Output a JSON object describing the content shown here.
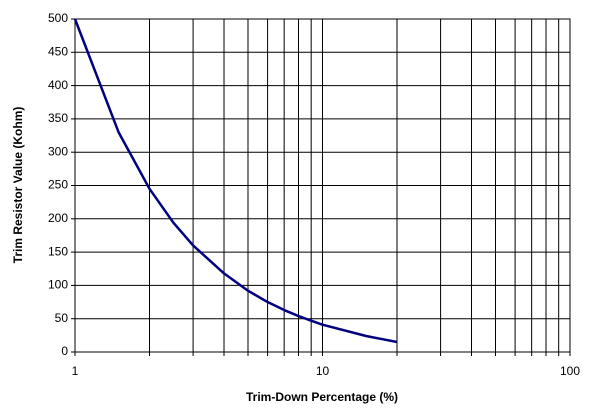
{
  "chart_data": {
    "type": "line",
    "xlabel": "Trim-Down Percentage (%)",
    "ylabel": "Trim Resistor Value (Kohm)",
    "x": [
      1,
      1.5,
      2,
      2.5,
      3,
      4,
      5,
      6,
      7,
      8,
      9,
      10,
      15,
      20
    ],
    "series": [
      {
        "color": "#000080",
        "values": [
          500,
          330,
          245,
          194,
          160,
          118,
          92,
          75,
          63,
          54,
          47,
          41,
          24,
          15
        ]
      }
    ],
    "xscale": "log",
    "xlim": [
      1,
      100
    ],
    "xticks": [
      1,
      10,
      100
    ],
    "xminor_ticks": [
      2,
      3,
      4,
      5,
      6,
      7,
      8,
      9,
      20,
      30,
      40,
      50,
      60,
      70,
      80,
      90
    ],
    "ylim": [
      0,
      500
    ],
    "yticks": [
      0,
      50,
      100,
      150,
      200,
      250,
      300,
      350,
      400,
      450,
      500
    ],
    "grid": true
  }
}
